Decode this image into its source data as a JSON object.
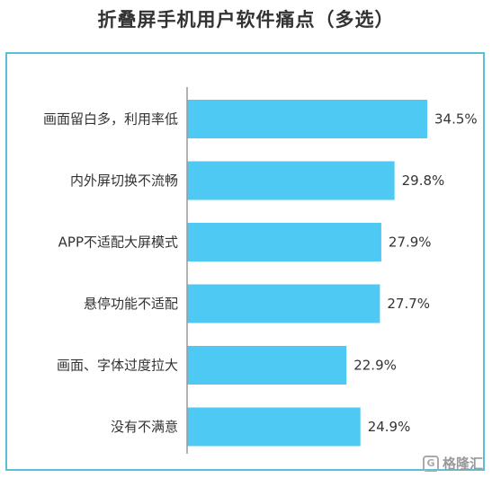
{
  "chart_data": {
    "type": "bar",
    "orientation": "horizontal",
    "title": "折叠屏手机用户软件痛点（多选）",
    "categories": [
      "画面留白多，利用率低",
      "内外屏切换不流畅",
      "APP不适配大屏模式",
      "悬停功能不适配",
      "画面、字体过度拉大",
      "没有不满意"
    ],
    "values": [
      34.5,
      29.8,
      27.9,
      27.7,
      22.9,
      24.9
    ],
    "value_labels": [
      "34.5%",
      "29.8%",
      "27.9%",
      "27.7%",
      "22.9%",
      "24.9%"
    ],
    "unit": "%",
    "xlim": [
      0,
      40
    ],
    "grid": false,
    "legend": "none",
    "bar_color": "#4dc9f3",
    "border_color": "#5bbfd8"
  },
  "watermark": {
    "logo_glyph": "G",
    "text": "格隆汇"
  }
}
